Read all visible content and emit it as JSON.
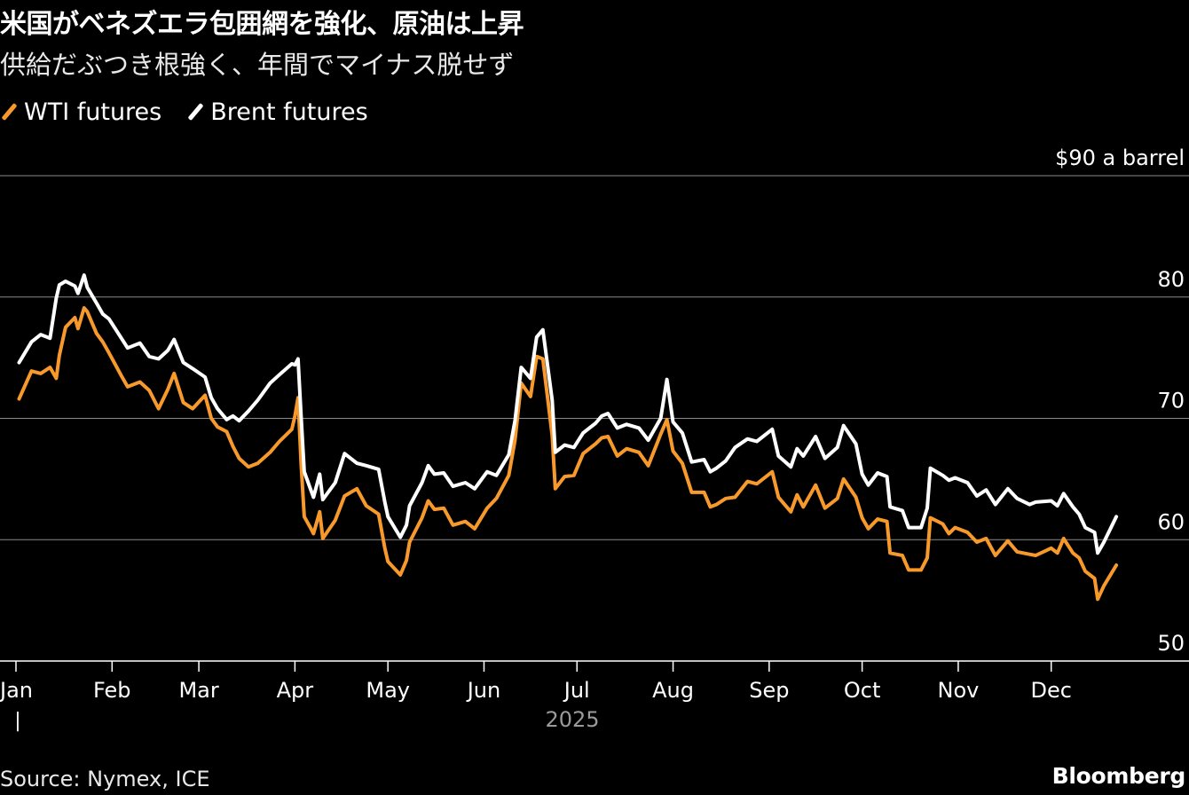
{
  "title": "米国がベネズエラ包囲網を強化、原油は上昇",
  "subtitle": "供給だぶつき根強く、年間でマイナス脱せず",
  "source": "Source: Nymex, ICE",
  "logo": "Bloomberg",
  "colors": {
    "wti": "#f89a2b",
    "brent": "#ffffff",
    "grid": "#8a8a8a",
    "axis": "#ffffff"
  },
  "chart_data": {
    "type": "line",
    "y_unit_label": "$90 a barrel",
    "ylim": [
      50,
      90
    ],
    "yticks": [
      50,
      60,
      70,
      80,
      90
    ],
    "ytick_labels": [
      "50",
      "60",
      "70",
      "80",
      "$90 a barrel"
    ],
    "grid": true,
    "legend_placement": "top-left",
    "xlim": [
      "2025-01-01",
      "2026-01-01"
    ],
    "month_ticks": [
      "2025-01-01",
      "2025-02-01",
      "2025-03-01",
      "2025-04-01",
      "2025-05-01",
      "2025-06-01",
      "2025-07-01",
      "2025-08-01",
      "2025-09-01",
      "2025-10-01",
      "2025-11-01",
      "2025-12-01"
    ],
    "month_labels": [
      "Jan",
      "Feb",
      "Mar",
      "Apr",
      "May",
      "Jun",
      "Jul",
      "Aug",
      "Sep",
      "Oct",
      "Nov",
      "Dec"
    ],
    "year_label": "2025",
    "year_marker": "|",
    "series": [
      {
        "name": "WTI futures",
        "color": "#f89a2b",
        "points": [
          [
            "2025-01-02",
            71.6
          ],
          [
            "2025-01-06",
            73.9
          ],
          [
            "2025-01-09",
            73.7
          ],
          [
            "2025-01-12",
            74.2
          ],
          [
            "2025-01-14",
            73.3
          ],
          [
            "2025-01-15",
            75.2
          ],
          [
            "2025-01-17",
            77.5
          ],
          [
            "2025-01-20",
            78.3
          ],
          [
            "2025-01-21",
            77.4
          ],
          [
            "2025-01-23",
            79.1
          ],
          [
            "2025-01-24",
            78.8
          ],
          [
            "2025-01-27",
            77.0
          ],
          [
            "2025-01-29",
            76.3
          ],
          [
            "2025-01-31",
            75.4
          ],
          [
            "2025-02-04",
            73.5
          ],
          [
            "2025-02-06",
            72.6
          ],
          [
            "2025-02-10",
            73.0
          ],
          [
            "2025-02-13",
            72.3
          ],
          [
            "2025-02-16",
            70.8
          ],
          [
            "2025-02-19",
            72.4
          ],
          [
            "2025-02-21",
            73.7
          ],
          [
            "2025-02-24",
            71.3
          ],
          [
            "2025-02-27",
            70.8
          ],
          [
            "2025-03-03",
            71.9
          ],
          [
            "2025-03-05",
            70.0
          ],
          [
            "2025-03-07",
            69.3
          ],
          [
            "2025-03-10",
            68.9
          ],
          [
            "2025-03-12",
            67.7
          ],
          [
            "2025-03-14",
            66.7
          ],
          [
            "2025-03-17",
            66.0
          ],
          [
            "2025-03-20",
            66.3
          ],
          [
            "2025-03-24",
            67.2
          ],
          [
            "2025-03-27",
            68.1
          ],
          [
            "2025-03-31",
            69.1
          ],
          [
            "2025-04-01",
            70.2
          ],
          [
            "2025-04-02",
            71.7
          ],
          [
            "2025-04-03",
            66.2
          ],
          [
            "2025-04-04",
            61.9
          ],
          [
            "2025-04-06",
            61.0
          ],
          [
            "2025-04-07",
            60.5
          ],
          [
            "2025-04-09",
            62.3
          ],
          [
            "2025-04-10",
            60.1
          ],
          [
            "2025-04-14",
            61.6
          ],
          [
            "2025-04-17",
            63.6
          ],
          [
            "2025-04-21",
            64.2
          ],
          [
            "2025-04-24",
            62.8
          ],
          [
            "2025-04-28",
            62.1
          ],
          [
            "2025-04-30",
            59.3
          ],
          [
            "2025-05-01",
            58.2
          ],
          [
            "2025-05-05",
            57.1
          ],
          [
            "2025-05-07",
            58.3
          ],
          [
            "2025-05-08",
            59.8
          ],
          [
            "2025-05-12",
            61.8
          ],
          [
            "2025-05-14",
            63.2
          ],
          [
            "2025-05-16",
            62.5
          ],
          [
            "2025-05-19",
            62.6
          ],
          [
            "2025-05-22",
            61.2
          ],
          [
            "2025-05-26",
            61.5
          ],
          [
            "2025-05-29",
            60.9
          ],
          [
            "2025-06-02",
            62.6
          ],
          [
            "2025-06-05",
            63.4
          ],
          [
            "2025-06-09",
            65.3
          ],
          [
            "2025-06-11",
            68.2
          ],
          [
            "2025-06-13",
            72.9
          ],
          [
            "2025-06-16",
            71.8
          ],
          [
            "2025-06-18",
            75.1
          ],
          [
            "2025-06-20",
            74.9
          ],
          [
            "2025-06-23",
            68.6
          ],
          [
            "2025-06-24",
            64.2
          ],
          [
            "2025-06-27",
            65.2
          ],
          [
            "2025-06-30",
            65.3
          ],
          [
            "2025-07-03",
            67.1
          ],
          [
            "2025-07-07",
            67.9
          ],
          [
            "2025-07-09",
            68.4
          ],
          [
            "2025-07-11",
            68.5
          ],
          [
            "2025-07-14",
            66.9
          ],
          [
            "2025-07-17",
            67.5
          ],
          [
            "2025-07-21",
            67.2
          ],
          [
            "2025-07-24",
            66.1
          ],
          [
            "2025-07-28",
            68.7
          ],
          [
            "2025-07-30",
            69.9
          ],
          [
            "2025-08-01",
            67.3
          ],
          [
            "2025-08-04",
            66.3
          ],
          [
            "2025-08-07",
            63.9
          ],
          [
            "2025-08-11",
            63.9
          ],
          [
            "2025-08-13",
            62.7
          ],
          [
            "2025-08-15",
            62.9
          ],
          [
            "2025-08-18",
            63.4
          ],
          [
            "2025-08-21",
            63.5
          ],
          [
            "2025-08-25",
            64.8
          ],
          [
            "2025-08-28",
            64.6
          ],
          [
            "2025-09-02",
            65.6
          ],
          [
            "2025-09-04",
            63.5
          ],
          [
            "2025-09-08",
            62.3
          ],
          [
            "2025-09-10",
            63.7
          ],
          [
            "2025-09-12",
            62.7
          ],
          [
            "2025-09-16",
            64.5
          ],
          [
            "2025-09-19",
            62.6
          ],
          [
            "2025-09-23",
            63.4
          ],
          [
            "2025-09-25",
            65.0
          ],
          [
            "2025-09-29",
            63.5
          ],
          [
            "2025-10-01",
            61.8
          ],
          [
            "2025-10-03",
            60.9
          ],
          [
            "2025-10-06",
            61.7
          ],
          [
            "2025-10-09",
            61.5
          ],
          [
            "2025-10-10",
            58.9
          ],
          [
            "2025-10-14",
            58.7
          ],
          [
            "2025-10-16",
            57.5
          ],
          [
            "2025-10-20",
            57.5
          ],
          [
            "2025-10-22",
            58.5
          ],
          [
            "2025-10-23",
            61.8
          ],
          [
            "2025-10-27",
            61.3
          ],
          [
            "2025-10-29",
            60.5
          ],
          [
            "2025-10-31",
            61.0
          ],
          [
            "2025-11-04",
            60.6
          ],
          [
            "2025-11-07",
            59.8
          ],
          [
            "2025-11-10",
            60.1
          ],
          [
            "2025-11-13",
            58.7
          ],
          [
            "2025-11-17",
            59.9
          ],
          [
            "2025-11-20",
            59.0
          ],
          [
            "2025-11-24",
            58.8
          ],
          [
            "2025-11-26",
            58.7
          ],
          [
            "2025-12-01",
            59.3
          ],
          [
            "2025-12-03",
            58.9
          ],
          [
            "2025-12-05",
            60.1
          ],
          [
            "2025-12-08",
            58.9
          ],
          [
            "2025-12-10",
            58.5
          ],
          [
            "2025-12-12",
            57.4
          ],
          [
            "2025-12-15",
            56.8
          ],
          [
            "2025-12-16",
            55.1
          ],
          [
            "2025-12-18",
            56.2
          ],
          [
            "2025-12-22",
            57.9
          ]
        ]
      },
      {
        "name": "Brent futures",
        "color": "#ffffff",
        "points": [
          [
            "2025-01-02",
            74.6
          ],
          [
            "2025-01-06",
            76.3
          ],
          [
            "2025-01-09",
            76.9
          ],
          [
            "2025-01-12",
            76.6
          ],
          [
            "2025-01-14",
            79.9
          ],
          [
            "2025-01-15",
            81.0
          ],
          [
            "2025-01-17",
            81.3
          ],
          [
            "2025-01-20",
            80.9
          ],
          [
            "2025-01-21",
            80.3
          ],
          [
            "2025-01-23",
            81.8
          ],
          [
            "2025-01-24",
            80.8
          ],
          [
            "2025-01-27",
            79.5
          ],
          [
            "2025-01-29",
            78.6
          ],
          [
            "2025-01-31",
            78.2
          ],
          [
            "2025-02-04",
            76.6
          ],
          [
            "2025-02-06",
            75.8
          ],
          [
            "2025-02-10",
            76.2
          ],
          [
            "2025-02-13",
            75.1
          ],
          [
            "2025-02-16",
            74.9
          ],
          [
            "2025-02-19",
            75.6
          ],
          [
            "2025-02-21",
            76.5
          ],
          [
            "2025-02-24",
            74.6
          ],
          [
            "2025-02-27",
            74.1
          ],
          [
            "2025-03-03",
            73.4
          ],
          [
            "2025-03-05",
            71.7
          ],
          [
            "2025-03-07",
            70.8
          ],
          [
            "2025-03-10",
            69.9
          ],
          [
            "2025-03-12",
            70.2
          ],
          [
            "2025-03-14",
            69.8
          ],
          [
            "2025-03-17",
            70.6
          ],
          [
            "2025-03-20",
            71.5
          ],
          [
            "2025-03-24",
            72.9
          ],
          [
            "2025-03-27",
            73.6
          ],
          [
            "2025-03-31",
            74.5
          ],
          [
            "2025-04-01",
            74.4
          ],
          [
            "2025-04-02",
            74.9
          ],
          [
            "2025-04-03",
            70.1
          ],
          [
            "2025-04-04",
            65.6
          ],
          [
            "2025-04-06",
            64.2
          ],
          [
            "2025-04-07",
            63.5
          ],
          [
            "2025-04-09",
            65.4
          ],
          [
            "2025-04-10",
            63.3
          ],
          [
            "2025-04-14",
            64.7
          ],
          [
            "2025-04-17",
            67.1
          ],
          [
            "2025-04-21",
            66.3
          ],
          [
            "2025-04-24",
            66.1
          ],
          [
            "2025-04-28",
            65.8
          ],
          [
            "2025-04-30",
            63.1
          ],
          [
            "2025-05-01",
            61.9
          ],
          [
            "2025-05-05",
            60.2
          ],
          [
            "2025-05-07",
            61.2
          ],
          [
            "2025-05-08",
            62.8
          ],
          [
            "2025-05-12",
            64.7
          ],
          [
            "2025-05-14",
            66.1
          ],
          [
            "2025-05-16",
            65.4
          ],
          [
            "2025-05-19",
            65.5
          ],
          [
            "2025-05-22",
            64.4
          ],
          [
            "2025-05-26",
            64.7
          ],
          [
            "2025-05-29",
            64.2
          ],
          [
            "2025-06-02",
            65.6
          ],
          [
            "2025-06-05",
            65.3
          ],
          [
            "2025-06-09",
            67.0
          ],
          [
            "2025-06-11",
            69.8
          ],
          [
            "2025-06-13",
            74.2
          ],
          [
            "2025-06-16",
            73.3
          ],
          [
            "2025-06-18",
            76.7
          ],
          [
            "2025-06-20",
            77.3
          ],
          [
            "2025-06-23",
            71.5
          ],
          [
            "2025-06-24",
            67.2
          ],
          [
            "2025-06-27",
            67.8
          ],
          [
            "2025-06-30",
            67.6
          ],
          [
            "2025-07-03",
            68.8
          ],
          [
            "2025-07-07",
            69.6
          ],
          [
            "2025-07-09",
            70.2
          ],
          [
            "2025-07-11",
            70.4
          ],
          [
            "2025-07-14",
            69.2
          ],
          [
            "2025-07-17",
            69.5
          ],
          [
            "2025-07-21",
            69.2
          ],
          [
            "2025-07-24",
            68.2
          ],
          [
            "2025-07-28",
            70.0
          ],
          [
            "2025-07-30",
            73.2
          ],
          [
            "2025-08-01",
            69.7
          ],
          [
            "2025-08-04",
            68.8
          ],
          [
            "2025-08-07",
            66.4
          ],
          [
            "2025-08-11",
            66.6
          ],
          [
            "2025-08-13",
            65.6
          ],
          [
            "2025-08-15",
            65.9
          ],
          [
            "2025-08-18",
            66.5
          ],
          [
            "2025-08-21",
            67.6
          ],
          [
            "2025-08-25",
            68.3
          ],
          [
            "2025-08-28",
            68.1
          ],
          [
            "2025-09-02",
            69.1
          ],
          [
            "2025-09-04",
            66.9
          ],
          [
            "2025-09-08",
            66.0
          ],
          [
            "2025-09-10",
            67.5
          ],
          [
            "2025-09-12",
            66.9
          ],
          [
            "2025-09-16",
            68.5
          ],
          [
            "2025-09-19",
            66.7
          ],
          [
            "2025-09-23",
            67.6
          ],
          [
            "2025-09-25",
            69.4
          ],
          [
            "2025-09-29",
            67.9
          ],
          [
            "2025-10-01",
            65.4
          ],
          [
            "2025-10-03",
            64.5
          ],
          [
            "2025-10-06",
            65.5
          ],
          [
            "2025-10-09",
            65.2
          ],
          [
            "2025-10-10",
            62.7
          ],
          [
            "2025-10-14",
            62.4
          ],
          [
            "2025-10-16",
            61.0
          ],
          [
            "2025-10-20",
            61.0
          ],
          [
            "2025-10-22",
            62.6
          ],
          [
            "2025-10-23",
            65.9
          ],
          [
            "2025-10-27",
            65.3
          ],
          [
            "2025-10-29",
            64.9
          ],
          [
            "2025-10-31",
            65.1
          ],
          [
            "2025-11-04",
            64.7
          ],
          [
            "2025-11-07",
            63.6
          ],
          [
            "2025-11-10",
            64.1
          ],
          [
            "2025-11-13",
            62.9
          ],
          [
            "2025-11-17",
            64.2
          ],
          [
            "2025-11-20",
            63.4
          ],
          [
            "2025-11-24",
            62.9
          ],
          [
            "2025-11-26",
            63.1
          ],
          [
            "2025-12-01",
            63.2
          ],
          [
            "2025-12-03",
            62.8
          ],
          [
            "2025-12-05",
            63.8
          ],
          [
            "2025-12-08",
            62.7
          ],
          [
            "2025-12-10",
            62.1
          ],
          [
            "2025-12-12",
            61.0
          ],
          [
            "2025-12-15",
            60.6
          ],
          [
            "2025-12-16",
            58.9
          ],
          [
            "2025-12-18",
            59.8
          ],
          [
            "2025-12-22",
            61.9
          ]
        ]
      }
    ]
  }
}
